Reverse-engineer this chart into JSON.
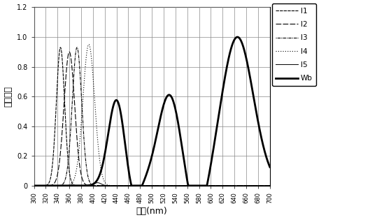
{
  "title": "",
  "xlabel": "波長(nm)",
  "ylabel": "分光強度",
  "xlim": [
    300,
    700
  ],
  "ylim": [
    0,
    1.2
  ],
  "xticks": [
    300,
    320,
    340,
    360,
    380,
    400,
    420,
    440,
    460,
    480,
    500,
    520,
    540,
    560,
    580,
    600,
    620,
    640,
    660,
    680,
    700
  ],
  "yticks": [
    0,
    0.2,
    0.4,
    0.6,
    0.8,
    1.0,
    1.2
  ],
  "I1": {
    "peak": 345,
    "sigma": 7,
    "amp": 0.93
  },
  "I2": {
    "peak": 360,
    "sigma": 9,
    "amp": 0.9
  },
  "I3": {
    "peak": 373,
    "sigma": 8,
    "amp": 0.93
  },
  "I4": {
    "peak": 393,
    "sigma": 10,
    "amp": 0.95
  },
  "I5": {
    "peak": 408,
    "sigma": 6,
    "amp": 0.02
  },
  "Wb_peaks": [
    {
      "mu": 440,
      "sigma": 14,
      "amp": 0.58
    },
    {
      "mu": 530,
      "sigma": 20,
      "amp": 0.62
    },
    {
      "mu": 645,
      "sigma": 27,
      "amp": 1.0
    }
  ],
  "Wb_dips": [
    {
      "mu": 468,
      "sigma": 11,
      "amp": 0.12
    },
    {
      "mu": 576,
      "sigma": 18,
      "amp": 0.26
    }
  ],
  "figsize": [
    5.59,
    3.15
  ],
  "dpi": 100
}
